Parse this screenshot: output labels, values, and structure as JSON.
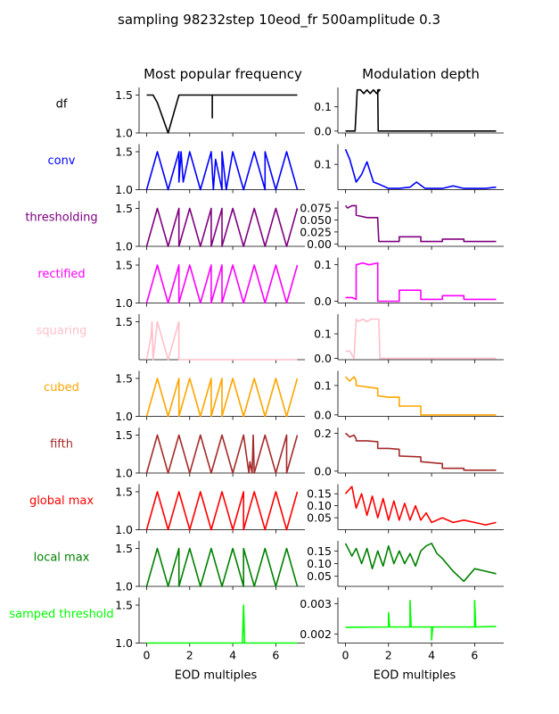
{
  "title": "sampling 98232step 10eod_fr 500amplitude 0.3",
  "columns": [
    {
      "label": "Most popular frequency"
    },
    {
      "label": "Modulation depth"
    }
  ],
  "xlabel": "EOD multiples",
  "xticks": [
    0,
    2,
    4,
    6
  ],
  "rows": [
    {
      "label": "df",
      "color": "#000000"
    },
    {
      "label": "conv",
      "color": "#0000ff"
    },
    {
      "label": "thresholding",
      "color": "#800080"
    },
    {
      "label": "rectified",
      "color": "#ff00ff"
    },
    {
      "label": "squaring",
      "color": "#ffc0cb"
    },
    {
      "label": "cubed",
      "color": "#ffa500"
    },
    {
      "label": "fifth",
      "color": "#a52a2a"
    },
    {
      "label": "global max",
      "color": "#ff0000"
    },
    {
      "label": "local max",
      "color": "#008000"
    },
    {
      "label": "samped threshold",
      "color": "#00ff00"
    }
  ],
  "chart_data": [
    {
      "type": "line",
      "panel": "df / Most popular frequency",
      "color": "#000000",
      "xlim": [
        -0.35,
        7.35
      ],
      "ylim": [
        1.0,
        1.6
      ],
      "yticks": [
        1.0,
        1.5
      ],
      "yticklabels": [
        "1.0",
        "1.5"
      ],
      "x": [
        0,
        0.3,
        0.5,
        1.0,
        1.5,
        2.0,
        3.05,
        3.05,
        3.05,
        3.05,
        4.0,
        5.0,
        6.0,
        7.0
      ],
      "y": [
        1.5,
        1.5,
        1.4,
        1.0,
        1.5,
        1.5,
        1.5,
        1.2,
        1.5,
        1.5,
        1.5,
        1.5,
        1.5,
        1.5
      ]
    },
    {
      "type": "line",
      "panel": "df / Modulation depth",
      "color": "#000000",
      "xlim": [
        -0.35,
        7.35
      ],
      "ylim": [
        -0.008,
        0.18
      ],
      "yticks": [
        0.0,
        0.1
      ],
      "yticklabels": [
        "0.0",
        "0.1"
      ],
      "x": [
        0,
        0.45,
        0.55,
        0.7,
        0.85,
        1.0,
        1.15,
        1.3,
        1.45,
        1.6,
        1.5,
        1.52,
        1.58,
        7.0
      ],
      "y": [
        0,
        0,
        0.17,
        0.17,
        0.155,
        0.17,
        0.155,
        0.17,
        0.155,
        0.17,
        0.17,
        0.0,
        0.0,
        0.0
      ]
    },
    {
      "type": "line",
      "panel": "conv / Most popular frequency",
      "color": "#0000ff",
      "xlim": [
        -0.35,
        7.35
      ],
      "ylim": [
        1.0,
        1.6
      ],
      "yticks": [
        1.0,
        1.5
      ],
      "yticklabels": [
        "1.0",
        "1.5"
      ],
      "x": [
        0,
        0.5,
        1.0,
        1.5,
        1.5,
        1.6,
        1.7,
        2.0,
        2.5,
        3.0,
        3.1,
        3.2,
        3.5,
        3.5,
        3.7,
        4.0,
        4.5,
        5.0,
        5.5,
        5.5,
        6.0,
        6.5,
        7.0
      ],
      "y": [
        1.0,
        1.5,
        1.0,
        1.5,
        1.1,
        1.5,
        1.1,
        1.5,
        1.0,
        1.5,
        1.0,
        1.4,
        1.0,
        1.5,
        1.0,
        1.5,
        1.0,
        1.5,
        1.0,
        1.5,
        1.0,
        1.5,
        1.0
      ]
    },
    {
      "type": "line",
      "panel": "conv / Modulation depth",
      "color": "#0000ff",
      "xlim": [
        -0.35,
        7.35
      ],
      "ylim": [
        0.0,
        0.18
      ],
      "yticks": [
        0.1
      ],
      "yticklabels": [
        "0.1"
      ],
      "x": [
        0,
        0.2,
        0.5,
        0.75,
        1.0,
        1.3,
        1.6,
        2.0,
        2.5,
        3.0,
        3.3,
        3.7,
        4.0,
        4.5,
        5.0,
        5.5,
        6.0,
        6.5,
        7.0
      ],
      "y": [
        0.16,
        0.12,
        0.03,
        0.06,
        0.11,
        0.03,
        0.02,
        0.005,
        0.005,
        0.01,
        0.03,
        0.005,
        0.005,
        0.005,
        0.015,
        0.005,
        0.005,
        0.005,
        0.01
      ]
    },
    {
      "type": "line",
      "panel": "thresholding / Most popular frequency",
      "color": "#800080",
      "xlim": [
        -0.35,
        7.35
      ],
      "ylim": [
        1.0,
        1.6
      ],
      "yticks": [
        1.0,
        1.5
      ],
      "yticklabels": [
        "1.0",
        "1.5"
      ],
      "x": [
        0,
        0.5,
        1.0,
        1.5,
        1.5,
        2.0,
        2.5,
        3.0,
        3.0,
        3.5,
        3.5,
        4.0,
        4.5,
        5.0,
        5.5,
        6.0,
        6.5,
        7.0
      ],
      "y": [
        1.0,
        1.5,
        1.0,
        1.5,
        1.0,
        1.5,
        1.0,
        1.5,
        1.0,
        1.5,
        1.0,
        1.5,
        1.0,
        1.5,
        1.0,
        1.5,
        1.0,
        1.5
      ]
    },
    {
      "type": "line",
      "panel": "thresholding / Modulation depth",
      "color": "#800080",
      "xlim": [
        -0.35,
        7.35
      ],
      "ylim": [
        -0.005,
        0.09
      ],
      "yticks": [
        0.0,
        0.025,
        0.05,
        0.075
      ],
      "yticklabels": [
        "0.00",
        "0.025",
        "0.050",
        "0.075"
      ],
      "x": [
        0,
        0.1,
        0.3,
        0.5,
        0.5,
        1.0,
        1.5,
        1.5,
        1.55,
        2.0,
        2.5,
        2.5,
        3.5,
        3.5,
        4.5,
        4.5,
        5.5,
        5.5,
        7.0
      ],
      "y": [
        0.08,
        0.075,
        0.08,
        0.08,
        0.06,
        0.055,
        0.055,
        0.05,
        0.005,
        0.005,
        0.005,
        0.015,
        0.015,
        0.005,
        0.005,
        0.01,
        0.01,
        0.005,
        0.005
      ]
    },
    {
      "type": "line",
      "panel": "rectified / Most popular frequency",
      "color": "#ff00ff",
      "xlim": [
        -0.35,
        7.35
      ],
      "ylim": [
        1.0,
        1.6
      ],
      "yticks": [
        1.0,
        1.5
      ],
      "yticklabels": [
        "1.0",
        "1.5"
      ],
      "x": [
        0,
        0.5,
        1.0,
        1.5,
        1.5,
        2.0,
        2.5,
        3.0,
        3.0,
        3.5,
        3.5,
        4.0,
        4.5,
        5.0,
        5.5,
        6.0,
        6.5,
        7.0
      ],
      "y": [
        1.0,
        1.5,
        1.0,
        1.5,
        1.0,
        1.5,
        1.0,
        1.5,
        1.0,
        1.5,
        1.0,
        1.5,
        1.0,
        1.5,
        1.0,
        1.5,
        1.0,
        1.5
      ]
    },
    {
      "type": "line",
      "panel": "rectified / Modulation depth",
      "color": "#ff00ff",
      "xlim": [
        -0.35,
        7.35
      ],
      "ylim": [
        -0.005,
        0.12
      ],
      "yticks": [
        0.0,
        0.1
      ],
      "yticklabels": [
        "0.0",
        "0.1"
      ],
      "x": [
        0,
        0.3,
        0.5,
        0.5,
        0.8,
        1.1,
        1.5,
        1.5,
        2.5,
        2.5,
        3.5,
        3.5,
        4.5,
        4.5,
        5.5,
        5.5,
        7.0
      ],
      "y": [
        0.01,
        0.01,
        0.005,
        0.1,
        0.105,
        0.1,
        0.105,
        0.0,
        0.0,
        0.03,
        0.03,
        0.005,
        0.005,
        0.015,
        0.015,
        0.005,
        0.005
      ]
    },
    {
      "type": "line",
      "panel": "squaring / Most popular frequency",
      "color": "#ffc0cb",
      "xlim": [
        -0.35,
        7.35
      ],
      "ylim": [
        1.0,
        1.6
      ],
      "yticks": [
        1.5
      ],
      "yticklabels": [
        "1.5"
      ],
      "x": [
        0,
        0.2,
        0.25,
        0.3,
        0.5,
        1.0,
        1.5,
        1.5,
        7.0
      ],
      "y": [
        1.0,
        1.3,
        1.5,
        1.0,
        1.5,
        1.0,
        1.5,
        1.0,
        1.0
      ]
    },
    {
      "type": "line",
      "panel": "squaring / Modulation depth",
      "color": "#ffc0cb",
      "xlim": [
        -0.35,
        7.35
      ],
      "ylim": [
        -0.005,
        0.18
      ],
      "yticks": [
        0.0,
        0.1
      ],
      "yticklabels": [
        "0.0",
        "0.1"
      ],
      "x": [
        0,
        0.2,
        0.4,
        0.5,
        0.6,
        0.8,
        1.0,
        1.2,
        1.4,
        1.55,
        1.6,
        7.0
      ],
      "y": [
        0.03,
        0.03,
        0.0,
        0.16,
        0.15,
        0.16,
        0.15,
        0.16,
        0.16,
        0.16,
        0.0,
        0.0
      ]
    },
    {
      "type": "line",
      "panel": "cubed / Most popular frequency",
      "color": "#ffa500",
      "xlim": [
        -0.35,
        7.35
      ],
      "ylim": [
        1.0,
        1.6
      ],
      "yticks": [
        1.0,
        1.5
      ],
      "yticklabels": [
        "1.0",
        "1.5"
      ],
      "x": [
        0,
        0.5,
        1.0,
        1.5,
        1.5,
        2.0,
        2.5,
        3.0,
        3.0,
        3.5,
        3.5,
        4.0,
        4.5,
        5.0,
        5.5,
        6.0,
        6.5,
        7.0
      ],
      "y": [
        1.0,
        1.5,
        1.0,
        1.5,
        1.0,
        1.5,
        1.0,
        1.5,
        1.0,
        1.5,
        1.0,
        1.5,
        1.0,
        1.5,
        1.0,
        1.5,
        1.0,
        1.5
      ]
    },
    {
      "type": "line",
      "panel": "cubed / Modulation depth",
      "color": "#ffa500",
      "xlim": [
        -0.35,
        7.35
      ],
      "ylim": [
        -0.005,
        0.15
      ],
      "yticks": [
        0.0,
        0.1
      ],
      "yticklabels": [
        "0.0",
        "0.1"
      ],
      "x": [
        0,
        0.2,
        0.4,
        0.5,
        0.5,
        1.0,
        1.5,
        1.5,
        2.0,
        2.5,
        2.5,
        3.5,
        3.5,
        7.0
      ],
      "y": [
        0.13,
        0.115,
        0.13,
        0.115,
        0.1,
        0.095,
        0.09,
        0.065,
        0.06,
        0.06,
        0.03,
        0.03,
        0.0,
        0.0
      ]
    },
    {
      "type": "line",
      "panel": "fifth / Most popular frequency",
      "color": "#a52a2a",
      "xlim": [
        -0.35,
        7.35
      ],
      "ylim": [
        1.0,
        1.6
      ],
      "yticks": [
        1.0,
        1.5
      ],
      "yticklabels": [
        "1.0",
        "1.5"
      ],
      "x": [
        0,
        0.5,
        1.0,
        1.5,
        2.0,
        2.5,
        3.0,
        3.5,
        4.0,
        4.5,
        4.75,
        4.8,
        4.9,
        4.95,
        5.0,
        5.5,
        6.0,
        6.5,
        6.5,
        7.0
      ],
      "y": [
        1.0,
        1.5,
        1.0,
        1.5,
        1.0,
        1.5,
        1.0,
        1.5,
        1.0,
        1.5,
        1.0,
        1.15,
        1.0,
        1.5,
        1.0,
        1.5,
        1.0,
        1.5,
        1.0,
        1.5
      ]
    },
    {
      "type": "line",
      "panel": "fifth / Modulation depth",
      "color": "#a52a2a",
      "xlim": [
        -0.35,
        7.35
      ],
      "ylim": [
        -0.01,
        0.23
      ],
      "yticks": [
        0.0,
        0.2
      ],
      "yticklabels": [
        "0.0",
        "0.2"
      ],
      "x": [
        0,
        0.2,
        0.4,
        0.5,
        0.5,
        1.0,
        1.5,
        1.5,
        2.0,
        2.5,
        2.5,
        3.5,
        3.5,
        4.5,
        4.5,
        5.5,
        5.5,
        7.0
      ],
      "y": [
        0.2,
        0.18,
        0.19,
        0.17,
        0.16,
        0.16,
        0.155,
        0.12,
        0.12,
        0.115,
        0.08,
        0.075,
        0.05,
        0.04,
        0.015,
        0.015,
        0.005,
        0.005
      ]
    },
    {
      "type": "line",
      "panel": "global max / Most popular frequency",
      "color": "#ff0000",
      "xlim": [
        -0.35,
        7.35
      ],
      "ylim": [
        1.0,
        1.6
      ],
      "yticks": [
        1.0,
        1.5
      ],
      "yticklabels": [
        "1.0",
        "1.5"
      ],
      "x": [
        0,
        0.5,
        1.0,
        1.5,
        2.0,
        2.5,
        3.0,
        3.5,
        4.0,
        4.5,
        4.5,
        5.0,
        5.5,
        6.0,
        6.5,
        7.0
      ],
      "y": [
        1.0,
        1.5,
        1.0,
        1.5,
        1.0,
        1.5,
        1.0,
        1.5,
        1.0,
        1.5,
        1.0,
        1.5,
        1.0,
        1.5,
        1.0,
        1.5
      ]
    },
    {
      "type": "line",
      "panel": "global max / Modulation depth",
      "color": "#ff0000",
      "xlim": [
        -0.35,
        7.35
      ],
      "ylim": [
        0.0,
        0.19
      ],
      "yticks": [
        0.05,
        0.1,
        0.15
      ],
      "yticklabels": [
        "0.05",
        "0.10",
        "0.15"
      ],
      "x": [
        0,
        0.3,
        0.5,
        0.75,
        1.0,
        1.25,
        1.5,
        1.75,
        2.0,
        2.25,
        2.5,
        2.75,
        3.0,
        3.25,
        3.5,
        3.75,
        4.0,
        4.5,
        5.0,
        5.5,
        6.0,
        6.5,
        7.0
      ],
      "y": [
        0.15,
        0.18,
        0.09,
        0.15,
        0.06,
        0.14,
        0.05,
        0.13,
        0.04,
        0.12,
        0.04,
        0.11,
        0.04,
        0.1,
        0.04,
        0.07,
        0.03,
        0.05,
        0.03,
        0.04,
        0.03,
        0.02,
        0.03
      ]
    },
    {
      "type": "line",
      "panel": "local max / Most popular frequency",
      "color": "#008000",
      "xlim": [
        -0.35,
        7.35
      ],
      "ylim": [
        1.0,
        1.6
      ],
      "yticks": [
        1.0,
        1.5
      ],
      "yticklabels": [
        "1.0",
        "1.5"
      ],
      "x": [
        0,
        0.5,
        1.0,
        1.5,
        1.5,
        2.0,
        2.5,
        3.0,
        3.5,
        4.0,
        4.5,
        4.5,
        5.0,
        5.5,
        6.0,
        6.5,
        7.0
      ],
      "y": [
        1.0,
        1.5,
        1.0,
        1.5,
        1.0,
        1.5,
        1.0,
        1.5,
        1.0,
        1.5,
        1.0,
        1.5,
        1.0,
        1.5,
        1.0,
        1.5,
        1.0
      ]
    },
    {
      "type": "line",
      "panel": "local max / Modulation depth",
      "color": "#008000",
      "xlim": [
        -0.35,
        7.35
      ],
      "ylim": [
        0.01,
        0.19
      ],
      "yticks": [
        0.05,
        0.1,
        0.15
      ],
      "yticklabels": [
        "0.05",
        "0.10",
        "0.15"
      ],
      "x": [
        0,
        0.3,
        0.5,
        0.75,
        1.0,
        1.25,
        1.5,
        1.75,
        2.0,
        2.25,
        2.5,
        2.75,
        3.0,
        3.25,
        3.5,
        3.75,
        4.0,
        4.25,
        4.5,
        5.0,
        5.5,
        6.0,
        6.5,
        7.0
      ],
      "y": [
        0.18,
        0.13,
        0.16,
        0.1,
        0.16,
        0.08,
        0.15,
        0.09,
        0.17,
        0.1,
        0.15,
        0.1,
        0.14,
        0.09,
        0.15,
        0.17,
        0.18,
        0.14,
        0.12,
        0.07,
        0.03,
        0.08,
        0.07,
        0.06
      ]
    },
    {
      "type": "line",
      "panel": "samped threshold / Most popular frequency",
      "color": "#00ff00",
      "xlim": [
        -0.35,
        7.35
      ],
      "ylim": [
        1.0,
        1.6
      ],
      "yticks": [
        1.0,
        1.5
      ],
      "yticklabels": [
        "1.0",
        "1.5"
      ],
      "x": [
        0,
        4.45,
        4.5,
        4.55,
        7.0
      ],
      "y": [
        1.0,
        1.0,
        1.5,
        1.0,
        1.0
      ]
    },
    {
      "type": "line",
      "panel": "samped threshold / Modulation depth",
      "color": "#00ff00",
      "xlim": [
        -0.35,
        7.35
      ],
      "ylim": [
        0.0017,
        0.0032
      ],
      "yticks": [
        0.002,
        0.003
      ],
      "yticklabels": [
        "0.002",
        "0.003"
      ],
      "x": [
        0,
        2.0,
        2.0,
        2.05,
        3.0,
        3.0,
        3.05,
        4.0,
        4.0,
        4.05,
        6.0,
        6.0,
        6.05,
        7.0
      ],
      "y": [
        0.00222,
        0.00223,
        0.0027,
        0.00223,
        0.00223,
        0.0031,
        0.00223,
        0.00223,
        0.0018,
        0.00223,
        0.00223,
        0.0031,
        0.00223,
        0.00225
      ]
    }
  ]
}
